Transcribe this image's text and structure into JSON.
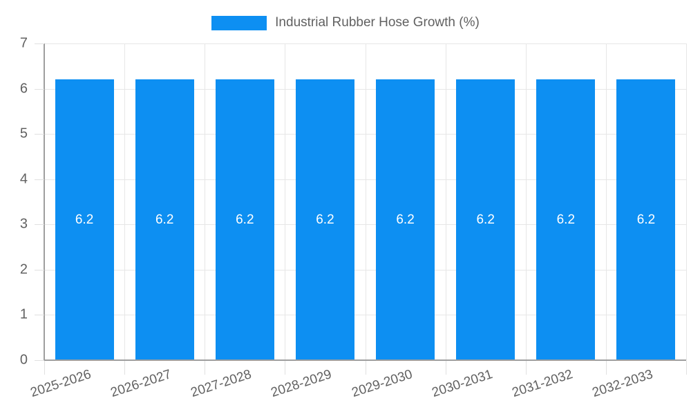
{
  "chart_data": {
    "type": "bar",
    "title": "",
    "categories": [
      "2025-2026",
      "2026-2027",
      "2027-2028",
      "2028-2029",
      "2029-2030",
      "2030-2031",
      "2031-2032",
      "2032-2033"
    ],
    "series": [
      {
        "name": "Industrial Rubber Hose Growth (%)",
        "values": [
          6.2,
          6.2,
          6.2,
          6.2,
          6.2,
          6.2,
          6.2,
          6.2
        ]
      }
    ],
    "value_labels": [
      "6.2",
      "6.2",
      "6.2",
      "6.2",
      "6.2",
      "6.2",
      "6.2",
      "6.2"
    ],
    "xlabel": "",
    "ylabel": "",
    "ylim": [
      0,
      7
    ],
    "y_ticks": [
      0,
      1,
      2,
      3,
      4,
      5,
      6,
      7
    ],
    "grid": true,
    "legend_position": "top",
    "colors": {
      "bar": "#0d8ff2",
      "gridline": "#e6e6e6",
      "axis_line": "#9e9e9e",
      "tick_label": "#616161",
      "legend_text": "#616161",
      "value_label": "#ffffff",
      "background": "#ffffff"
    }
  }
}
